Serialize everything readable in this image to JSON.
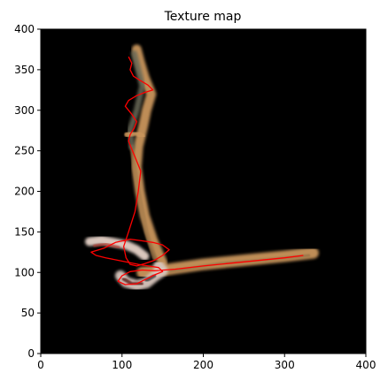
{
  "chart_data": {
    "type": "image",
    "title": "Texture map",
    "xlabel": "",
    "ylabel": "",
    "xlim": [
      0,
      400
    ],
    "ylim": [
      0,
      400
    ],
    "xticks": [
      "0",
      "100",
      "200",
      "300",
      "400"
    ],
    "yticks": [
      "0",
      "50",
      "100",
      "150",
      "200",
      "250",
      "300",
      "350",
      "400"
    ],
    "background_color": "#000000",
    "grid": false,
    "series": [
      {
        "color": "#ff0000",
        "x": [
          323,
          300,
          250,
          200,
          165,
          140,
          125,
          110,
          100,
          95,
          104,
          118,
          130,
          140,
          150,
          145,
          132,
          120,
          110,
          95,
          80,
          68,
          62,
          78,
          92,
          110,
          125,
          138,
          150,
          158,
          150,
          140,
          128,
          118,
          110,
          105,
          102,
          108,
          116,
          120,
          123,
          117,
          112,
          108,
          110,
          115,
          118,
          112,
          104,
          108,
          118,
          128,
          138,
          132,
          122,
          114,
          110,
          112,
          108
        ],
        "y": [
          121,
          118,
          113,
          108,
          104,
          102,
          103,
          101,
          96,
          89,
          85,
          86,
          92,
          97,
          101,
          106,
          108,
          110,
          112,
          115,
          118,
          121,
          125,
          130,
          137,
          141,
          139,
          137,
          134,
          128,
          121,
          115,
          111,
          108,
          110,
          118,
          132,
          150,
          175,
          200,
          225,
          240,
          252,
          262,
          270,
          278,
          286,
          295,
          305,
          312,
          318,
          322,
          325,
          331,
          337,
          342,
          350,
          358,
          366
        ]
      }
    ]
  }
}
